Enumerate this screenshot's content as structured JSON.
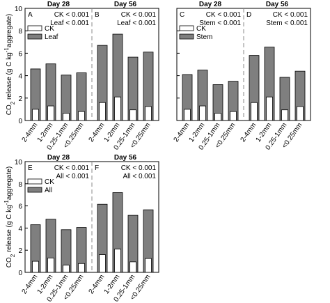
{
  "chart_data": [
    {
      "type": "bar",
      "y_label": [
        "CO",
        "2",
        " release (g C kg",
        "-1",
        "aggregate)"
      ],
      "y_label_style": [
        "normal",
        "sub",
        "normal",
        "sup",
        "normal"
      ],
      "ytick_labels": true,
      "ylim": [
        0,
        10
      ],
      "yticks": [
        0,
        2,
        4,
        6,
        8,
        10
      ],
      "categories": [
        "2-4mm",
        "1-2mm",
        "0.25-1mm",
        "<0.25mm"
      ],
      "panels": [
        {
          "title": "Day 28",
          "letter": "A",
          "annotations": [
            "CK < 0.001",
            "Leaf < 0.001"
          ]
        },
        {
          "title": "Day 56",
          "letter": "B",
          "annotations": [
            "CK < 0.001",
            "Leaf < 0.001"
          ]
        }
      ],
      "series": [
        {
          "name": "Leaf",
          "color": "#7f7f7f",
          "values": [
            [
              4.6,
              5.05,
              4.05,
              4.25
            ],
            [
              6.7,
              7.7,
              5.65,
              6.1
            ]
          ]
        },
        {
          "name": "CK",
          "color": "#ffffff",
          "values": [
            [
              1.0,
              1.3,
              0.65,
              0.8
            ],
            [
              1.6,
              2.1,
              0.95,
              1.25
            ]
          ]
        }
      ]
    },
    {
      "type": "bar",
      "ytick_labels": false,
      "ylim": [
        0,
        10
      ],
      "yticks": [
        0,
        2,
        4,
        6,
        8,
        10
      ],
      "categories": [
        "2-4mm",
        "1-2mm",
        "0.25-1mm",
        "<0.25mm"
      ],
      "panels": [
        {
          "title": "Day 28",
          "letter": "C",
          "annotations": [
            "CK < 0.001",
            "Stem < 0.001"
          ]
        },
        {
          "title": "Day 56",
          "letter": "D",
          "annotations": [
            "CK < 0.001",
            "Stem < 0.001"
          ]
        }
      ],
      "series": [
        {
          "name": "Stem",
          "color": "#7f7f7f",
          "values": [
            [
              4.1,
              4.5,
              3.2,
              3.5
            ],
            [
              5.8,
              6.55,
              3.85,
              4.4
            ]
          ]
        },
        {
          "name": "CK",
          "color": "#ffffff",
          "values": [
            [
              1.0,
              1.3,
              0.65,
              0.8
            ],
            [
              1.6,
              2.1,
              0.95,
              1.25
            ]
          ]
        }
      ]
    },
    {
      "type": "bar",
      "y_label": [
        "CO",
        "2",
        " release (g C kg",
        "-1",
        "aggregate)"
      ],
      "y_label_style": [
        "normal",
        "sub",
        "normal",
        "sup",
        "normal"
      ],
      "ytick_labels": true,
      "ylim": [
        0,
        10
      ],
      "yticks": [
        0,
        2,
        4,
        6,
        8,
        10
      ],
      "categories": [
        "2-4mm",
        "1-2mm",
        "0.25-1mm",
        "<0.25mm"
      ],
      "panels": [
        {
          "title": "Day 28",
          "letter": "E",
          "annotations": [
            "CK < 0.001",
            "All < 0.001"
          ]
        },
        {
          "title": "Day 56",
          "letter": "F",
          "annotations": [
            "CK < 0.001",
            "All < 0.001"
          ]
        }
      ],
      "series": [
        {
          "name": "All",
          "color": "#7f7f7f",
          "values": [
            [
              4.3,
              4.8,
              3.85,
              4.05
            ],
            [
              6.15,
              7.2,
              5.15,
              5.65
            ]
          ]
        },
        {
          "name": "CK",
          "color": "#ffffff",
          "values": [
            [
              1.0,
              1.3,
              0.65,
              0.8
            ],
            [
              1.6,
              2.1,
              0.95,
              1.25
            ]
          ]
        }
      ]
    }
  ]
}
